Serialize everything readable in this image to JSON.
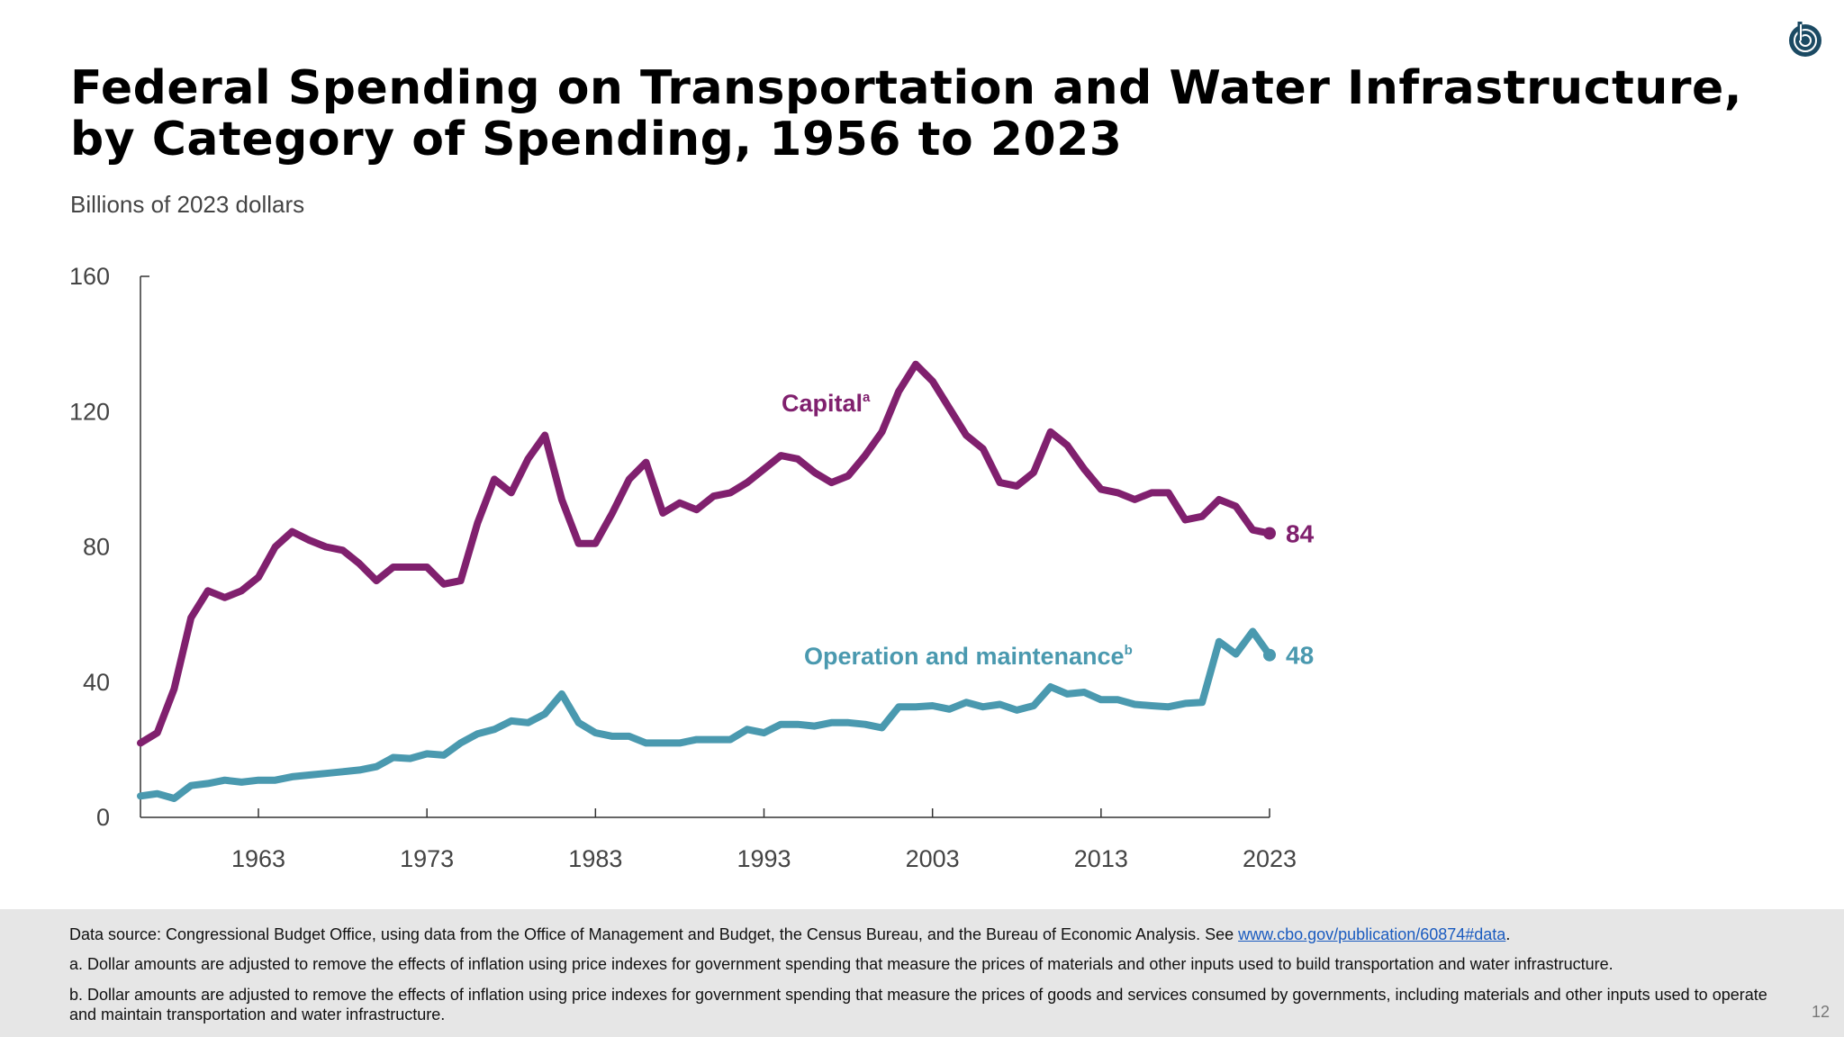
{
  "title_line1": "Federal Spending on Transportation and Water Infrastructure,",
  "title_line2": "by Category of Spending, 1956 to 2023",
  "subtitle": "Billions of 2023 dollars",
  "logo": "CBO",
  "colors": {
    "capital": "#80206e",
    "operation": "#4a99af",
    "footer_bg": "#e6e6e6",
    "link": "#1a5bbf"
  },
  "chart_data": {
    "type": "line",
    "ylabel": "Billions of 2023 dollars",
    "ylim": [
      0,
      160
    ],
    "yticks": [
      "0",
      "40",
      "80",
      "120",
      "160"
    ],
    "xlim": [
      1956,
      2023
    ],
    "xticks": [
      "1963",
      "1973",
      "1983",
      "1993",
      "2003",
      "2013",
      "2023"
    ],
    "grid": false,
    "x": [
      1956,
      1957,
      1958,
      1959,
      1960,
      1961,
      1962,
      1963,
      1964,
      1965,
      1966,
      1967,
      1968,
      1969,
      1970,
      1971,
      1972,
      1973,
      1974,
      1975,
      1976,
      1977,
      1978,
      1979,
      1980,
      1981,
      1982,
      1983,
      1984,
      1985,
      1986,
      1987,
      1988,
      1989,
      1990,
      1991,
      1992,
      1993,
      1994,
      1995,
      1996,
      1997,
      1998,
      1999,
      2000,
      2001,
      2002,
      2003,
      2004,
      2005,
      2006,
      2007,
      2008,
      2009,
      2010,
      2011,
      2012,
      2013,
      2014,
      2015,
      2016,
      2017,
      2018,
      2019,
      2020,
      2021,
      2022,
      2023
    ],
    "series": [
      {
        "name": "Capital",
        "note": "a",
        "end_label": "84",
        "values": [
          22,
          25,
          38,
          59,
          67,
          65,
          67,
          71,
          80,
          84.5,
          82,
          80,
          79,
          75,
          70,
          74,
          74,
          74,
          69,
          70,
          87,
          100,
          96,
          106,
          113,
          94,
          81,
          81,
          90,
          100,
          105,
          90,
          93,
          91,
          95,
          96,
          99,
          103,
          107,
          106,
          102,
          99,
          101,
          107,
          114,
          126,
          134,
          129,
          121,
          113,
          109,
          99,
          98,
          102,
          114,
          110,
          103,
          97,
          96,
          94,
          96,
          96,
          88,
          89,
          94,
          92,
          85,
          84
        ]
      },
      {
        "name": "Operation and maintenance",
        "note": "b",
        "end_label": "48",
        "values": [
          6.3,
          7,
          5.6,
          9.4,
          10,
          11,
          10.4,
          11,
          11,
          12,
          12.5,
          13,
          13.5,
          14,
          15,
          17.7,
          17.4,
          18.8,
          18.4,
          22,
          24.7,
          26,
          28.5,
          28,
          30.6,
          36.5,
          28,
          25,
          24,
          24,
          22,
          22,
          22,
          23,
          23,
          23,
          26,
          25,
          27.5,
          27.5,
          27,
          28,
          28,
          27.5,
          26.5,
          32.7,
          32.7,
          33,
          32,
          34,
          32.7,
          33.4,
          31.7,
          33,
          38.6,
          36.5,
          37,
          34.8,
          34.8,
          33.4,
          33,
          32.7,
          33.7,
          34,
          52,
          48.3,
          55,
          48
        ]
      }
    ]
  },
  "footer": {
    "source_prefix": "Data source: Congressional Budget Office, using data from the Office of Management and Budget, the Census Bureau, and the Bureau of Economic Analysis. See ",
    "source_link": "www.cbo.gov/publication/60874#data",
    "source_suffix": ".",
    "note_a": "a. Dollar amounts are adjusted to remove the effects of inflation using price indexes for government spending that measure the prices of materials and other inputs used to build transportation and water infrastructure.",
    "note_b": "b. Dollar amounts are adjusted to remove the effects of inflation using price indexes for government spending that measure the prices of goods and services consumed by governments, including materials and other inputs used to operate and maintain transportation and water infrastructure.",
    "page_number": "12"
  }
}
